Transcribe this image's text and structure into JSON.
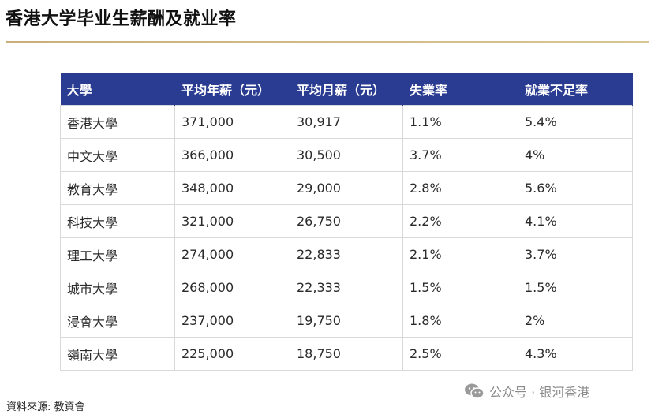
{
  "title": "香港大学毕业生薪酬及就业率",
  "table": {
    "headers": [
      "大學",
      "平均年薪（元）",
      "平均月薪（元）",
      "失業率",
      "就業不足率"
    ],
    "rows": [
      [
        "香港大學",
        "371,000",
        "30,917",
        "1.1%",
        "5.4%"
      ],
      [
        "中文大學",
        "366,000",
        "30,500",
        "3.7%",
        "4%"
      ],
      [
        "教育大學",
        "348,000",
        "29,000",
        "2.8%",
        "5.6%"
      ],
      [
        "科技大學",
        "321,000",
        "26,750",
        "2.2%",
        "4.1%"
      ],
      [
        "理工大學",
        "274,000",
        "22,833",
        "2.1%",
        "3.7%"
      ],
      [
        "城市大學",
        "268,000",
        "22,333",
        "1.5%",
        "1.5%"
      ],
      [
        "浸會大學",
        "237,000",
        "19,750",
        "1.8%",
        "2%"
      ],
      [
        "嶺南大學",
        "225,000",
        "18,750",
        "2.5%",
        "4.3%"
      ]
    ]
  },
  "source": "資料來源: 教資會",
  "watermark": {
    "icon": "wechat-icon",
    "text": "公众号 · 银河香港"
  },
  "colors": {
    "header_bg": "#2a3c91",
    "divider": "#c9b07a"
  }
}
